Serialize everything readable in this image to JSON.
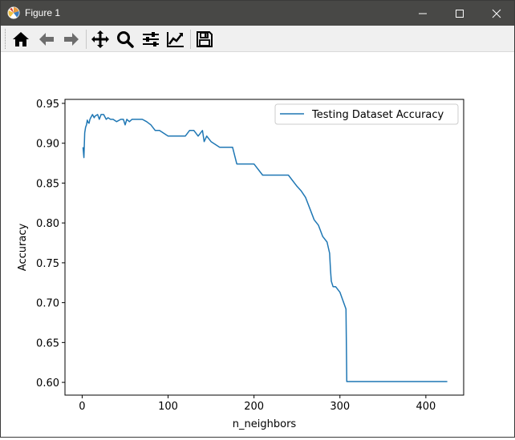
{
  "window": {
    "title": "Figure 1",
    "titlebar_color": "#484846",
    "toolbar_color": "#f0f0f0"
  },
  "toolbar": {
    "buttons": [
      {
        "name": "home",
        "icon": "home-icon"
      },
      {
        "name": "back",
        "icon": "arrow-left-icon"
      },
      {
        "name": "forward",
        "icon": "arrow-right-icon"
      },
      {
        "name": "pan",
        "icon": "move-icon"
      },
      {
        "name": "zoom",
        "icon": "magnifier-icon"
      },
      {
        "name": "configure-subplots",
        "icon": "sliders-icon"
      },
      {
        "name": "edit-axis",
        "icon": "chart-line-icon"
      },
      {
        "name": "save",
        "icon": "floppy-disk-icon"
      }
    ]
  },
  "chart_data": {
    "type": "line",
    "title": "",
    "xlabel": "n_neighbors",
    "ylabel": "Accuracy",
    "xlim": [
      -20,
      444
    ],
    "ylim": [
      0.584,
      0.955
    ],
    "xticks": [
      0,
      100,
      200,
      300,
      400
    ],
    "yticks": [
      0.6,
      0.65,
      0.7,
      0.75,
      0.8,
      0.85,
      0.9,
      0.95
    ],
    "ytick_labels": [
      "0.60",
      "0.65",
      "0.70",
      "0.75",
      "0.80",
      "0.85",
      "0.90",
      "0.95"
    ],
    "grid": false,
    "legend": "upper right",
    "series": [
      {
        "name": "Testing Dataset Accuracy",
        "color": "#1f77b4",
        "x": [
          1,
          2,
          3,
          4,
          5,
          6,
          7,
          8,
          9,
          10,
          12,
          14,
          15,
          18,
          20,
          22,
          25,
          28,
          30,
          33,
          36,
          40,
          45,
          48,
          50,
          52,
          55,
          58,
          60,
          65,
          70,
          75,
          80,
          85,
          90,
          100,
          110,
          120,
          125,
          130,
          135,
          140,
          142,
          145,
          150,
          160,
          175,
          180,
          190,
          200,
          210,
          220,
          230,
          240,
          250,
          255,
          260,
          265,
          270,
          275,
          280,
          285,
          288,
          289,
          290,
          292,
          295,
          300,
          307,
          308,
          320,
          340,
          360,
          380,
          400,
          425
        ],
        "values": [
          0.895,
          0.882,
          0.913,
          0.92,
          0.923,
          0.929,
          0.926,
          0.925,
          0.93,
          0.932,
          0.936,
          0.932,
          0.934,
          0.936,
          0.93,
          0.936,
          0.936,
          0.93,
          0.932,
          0.93,
          0.93,
          0.927,
          0.93,
          0.93,
          0.923,
          0.93,
          0.927,
          0.93,
          0.93,
          0.93,
          0.93,
          0.927,
          0.923,
          0.916,
          0.916,
          0.909,
          0.909,
          0.909,
          0.916,
          0.916,
          0.909,
          0.916,
          0.902,
          0.909,
          0.902,
          0.895,
          0.895,
          0.874,
          0.874,
          0.874,
          0.86,
          0.86,
          0.86,
          0.86,
          0.846,
          0.84,
          0.832,
          0.818,
          0.804,
          0.797,
          0.783,
          0.776,
          0.762,
          0.741,
          0.727,
          0.72,
          0.72,
          0.713,
          0.692,
          0.601,
          0.601,
          0.601,
          0.601,
          0.601,
          0.601,
          0.601
        ]
      }
    ]
  }
}
